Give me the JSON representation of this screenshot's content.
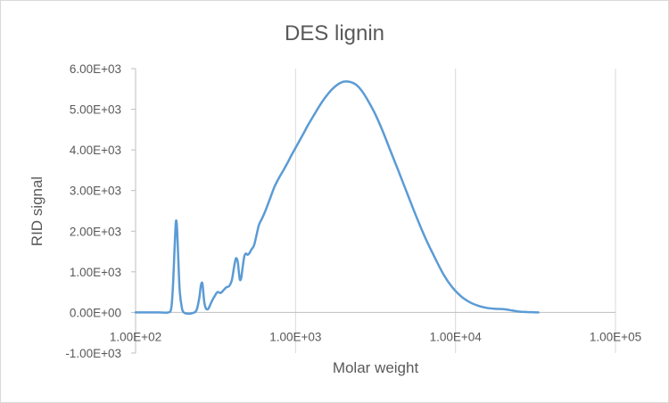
{
  "chart_data": {
    "type": "line",
    "title": "DES lignin",
    "xlabel": "Molar weight",
    "ylabel": "RID signal",
    "x_scale": "log",
    "xlim": [
      100,
      100000
    ],
    "ylim": [
      -1000,
      6000
    ],
    "x_ticks": [
      100,
      1000,
      10000,
      100000
    ],
    "x_tick_labels": [
      "1.00E+02",
      "1.00E+03",
      "1.00E+04",
      "1.00E+05"
    ],
    "y_ticks": [
      -1000,
      0,
      1000,
      2000,
      3000,
      4000,
      5000,
      6000
    ],
    "y_tick_labels": [
      "-1.00E+03",
      "0.00E+00",
      "1.00E+03",
      "2.00E+03",
      "3.00E+03",
      "4.00E+03",
      "5.00E+03",
      "6.00E+03"
    ],
    "grid": "vertical",
    "legend": "none",
    "series": [
      {
        "color": "#5b9bd5",
        "x": [
          100,
          140,
          160,
          167,
          171,
          175,
          178,
          180,
          182,
          185,
          189,
          195,
          200,
          210,
          225,
          240,
          250,
          255,
          259,
          262,
          265,
          269,
          275,
          283,
          290,
          300,
          312,
          325,
          340,
          355,
          370,
          385,
          400,
          412,
          424,
          435,
          442,
          448,
          453,
          458,
          465,
          473,
          480,
          490,
          502,
          515,
          530,
          550,
          570,
          590,
          615,
          640,
          670,
          700,
          740,
          790,
          840,
          890,
          940,
          990,
          1050,
          1120,
          1200,
          1300,
          1420,
          1560,
          1700,
          1850,
          2000,
          2150,
          2250,
          2400,
          2600,
          2850,
          3150,
          3500,
          3900,
          4400,
          5000,
          5700,
          6500,
          7400,
          8400,
          9500,
          10800,
          12300,
          14000,
          15800,
          17800,
          20000,
          22500,
          25000,
          28000,
          31000,
          33000
        ],
        "y": [
          0,
          0,
          0,
          100,
          600,
          1500,
          2150,
          2250,
          2000,
          1300,
          500,
          100,
          0,
          -30,
          -20,
          50,
          350,
          620,
          730,
          700,
          500,
          250,
          100,
          80,
          150,
          280,
          400,
          500,
          480,
          550,
          620,
          650,
          800,
          1100,
          1330,
          1250,
          1000,
          820,
          800,
          860,
          1050,
          1270,
          1400,
          1450,
          1420,
          1460,
          1550,
          1650,
          1900,
          2150,
          2300,
          2450,
          2650,
          2850,
          3100,
          3320,
          3500,
          3680,
          3860,
          4020,
          4200,
          4400,
          4620,
          4850,
          5100,
          5330,
          5500,
          5620,
          5680,
          5680,
          5660,
          5600,
          5450,
          5200,
          4880,
          4470,
          4000,
          3480,
          2920,
          2350,
          1820,
          1360,
          940,
          630,
          400,
          250,
          160,
          110,
          90,
          80,
          50,
          20,
          10,
          5,
          0
        ]
      }
    ]
  }
}
